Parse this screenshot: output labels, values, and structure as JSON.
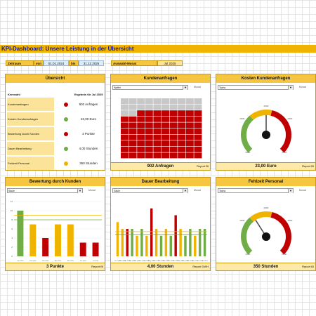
{
  "title": "KPI-Dashboard: Unsere Leistung in der Übersicht",
  "filter": {
    "zeitraum_label": "Zeitraum",
    "von_label": "von",
    "von_value": "01.01.2024",
    "bis_label": "bis",
    "bis_value": "31.12.2025",
    "monat_label": "Auswahl-Monat",
    "monat_value": "Jul 2025"
  },
  "overview": {
    "title": "Übersicht",
    "col_kennzahl": "Kennzahl",
    "col_ergebnis": "Ergebnis für Jul 2025",
    "rows": [
      {
        "label": "Kundenanfragen",
        "value": "902  Anfragen",
        "status_color": "#c00000"
      },
      {
        "label": "Kosten Kundenanfragen",
        "value": "23,00  Euro",
        "status_color": "#70ad47"
      },
      {
        "label": "Bewertung durch Kunden",
        "value": "3  Punkte",
        "status_color": "#c00000"
      },
      {
        "label": "Dauer Bearbeitung",
        "value": "4,00  Stunden",
        "status_color": "#70ad47"
      },
      {
        "label": "Fehlzeit Personal",
        "value": "350  Stunden",
        "status_color": "#f0b400"
      }
    ]
  },
  "kundenanfragen": {
    "title": "Kundenanfragen",
    "select": "Waffel",
    "select_right": "Monat",
    "footer_value": "902  Anfragen",
    "footer_report": "Report BI",
    "waffle_total": 100,
    "waffle_filled": 78,
    "color_filled": "#c00000",
    "color_empty": "#c8c8c8"
  },
  "kosten": {
    "title": "Kosten Kundenanfragen",
    "select": "Tacho",
    "select_right": "Monat",
    "footer_value": "23,00  Euro",
    "footer_report": "Report BI",
    "gauge_min": "0000",
    "gauge_max": "0000",
    "gauge_left": "0000",
    "gauge_top": "0000",
    "gauge_right": "0000",
    "needle_fraction": 0.5
  },
  "bewertung": {
    "title": "Bewertung durch Kunden",
    "select": "Säule",
    "select_right": "Monat",
    "footer_value": "3  Punkte",
    "footer_report": "Report BI",
    "chart_data": {
      "type": "bar",
      "categories": [
        "Jan 2025",
        "Feb 2025",
        "Mrz 2025",
        "Apr 2025",
        "Mai 2025",
        "Jun 2025",
        "Jul 2025"
      ],
      "values": [
        10,
        7,
        4,
        7,
        7,
        3,
        3
      ],
      "colors": [
        "#70ad47",
        "#f0b400",
        "#c00000",
        "#f0b400",
        "#f0b400",
        "#c00000",
        "#c00000"
      ],
      "yticks": [
        "12",
        "10",
        "8",
        "6",
        "4",
        "2",
        "0"
      ],
      "ylim": [
        0,
        12
      ],
      "target_lines": [
        8,
        9
      ]
    }
  },
  "dauer": {
    "title": "Dauer Bearbeitung",
    "select": "Säule",
    "select_right": "Monat",
    "footer_value": "4,00  Stunden",
    "footer_report": "Report DWH",
    "chart_data": {
      "type": "bar",
      "categories": [
        "Jan 2024",
        "Feb 2024",
        "Mrz 2024",
        "Apr 2024",
        "Mai 2024",
        "Jun 2024",
        "Jul 2024",
        "Aug 2024",
        "Sep 2024",
        "Okt 2024",
        "Nov 2024",
        "Dez 2024",
        "Jan 2025",
        "Feb 2025",
        "Mrz 2025",
        "Apr 2025",
        "Mai 2025",
        "Jun 2025",
        "Jul 2025"
      ],
      "values": [
        5,
        4,
        4,
        4,
        3,
        4,
        3,
        7,
        4,
        3,
        4,
        3,
        6,
        4,
        3,
        4,
        3,
        4,
        4
      ],
      "colors": [
        "#f0b400",
        "#f0b400",
        "#c00000",
        "#70ad47",
        "#f0b400",
        "#70ad47",
        "#f0b400",
        "#c00000",
        "#f0b400",
        "#70ad47",
        "#f0b400",
        "#70ad47",
        "#c00000",
        "#f0b400",
        "#70ad47",
        "#70ad47",
        "#f0b400",
        "#70ad47",
        "#70ad47"
      ],
      "ylim": [
        0,
        8
      ],
      "target_lines": [
        3.2,
        3.6
      ]
    }
  },
  "fehlzeit": {
    "title": "Fehlzeit Personal",
    "select": "Tacho",
    "select_right": "Monat",
    "footer_value": "350  Stunden",
    "footer_report": "Report BI",
    "gauge_min": "0000",
    "gauge_max": "0000",
    "gauge_left": "0000",
    "gauge_top": "0000",
    "gauge_right": "0000",
    "needle_fraction": 0.38
  }
}
